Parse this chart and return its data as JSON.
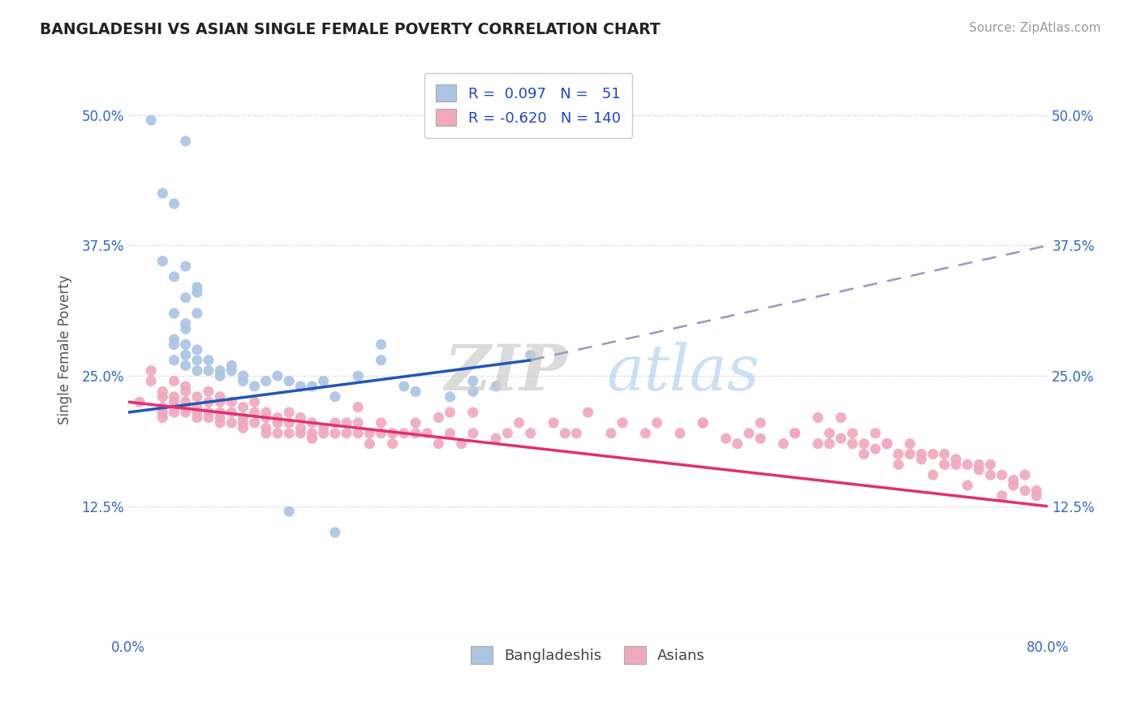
{
  "title": "BANGLADESHI VS ASIAN SINGLE FEMALE POVERTY CORRELATION CHART",
  "source": "Source: ZipAtlas.com",
  "ylabel": "Single Female Poverty",
  "xlim": [
    0.0,
    0.8
  ],
  "ylim": [
    0.0,
    0.55
  ],
  "yticks": [
    0.0,
    0.125,
    0.25,
    0.375,
    0.5
  ],
  "yticklabels": [
    "",
    "12.5%",
    "25.0%",
    "37.5%",
    "50.0%"
  ],
  "xticks": [
    0.0,
    0.2,
    0.4,
    0.6,
    0.8
  ],
  "xticklabels": [
    "0.0%",
    "",
    "",
    "",
    "80.0%"
  ],
  "bg_color": "#ffffff",
  "grid_color": "#c8c8c8",
  "bangladeshi_color": "#aac4e2",
  "asian_color": "#f0a8bc",
  "bangladeshi_line_color": "#2255bb",
  "asian_line_color": "#e03070",
  "dashed_line_color": "#9999bb",
  "R_bangladeshi": 0.097,
  "N_bangladeshi": 51,
  "R_asian": -0.62,
  "N_asian": 140,
  "bangladeshi_line_x0": 0.0,
  "bangladeshi_line_y0": 0.215,
  "bangladeshi_line_x1": 0.35,
  "bangladeshi_line_y1": 0.265,
  "bangladeshi_line_x2": 0.8,
  "bangladeshi_line_y2": 0.375,
  "asian_line_x0": 0.0,
  "asian_line_y0": 0.225,
  "asian_line_x1": 0.8,
  "asian_line_y1": 0.125,
  "bangladeshi_x": [
    0.02,
    0.05,
    0.03,
    0.04,
    0.03,
    0.05,
    0.04,
    0.06,
    0.05,
    0.06,
    0.04,
    0.05,
    0.06,
    0.05,
    0.04,
    0.05,
    0.04,
    0.06,
    0.05,
    0.04,
    0.06,
    0.05,
    0.06,
    0.07,
    0.07,
    0.08,
    0.08,
    0.09,
    0.09,
    0.1,
    0.1,
    0.11,
    0.12,
    0.13,
    0.14,
    0.15,
    0.16,
    0.17,
    0.18,
    0.2,
    0.22,
    0.22,
    0.24,
    0.25,
    0.28,
    0.3,
    0.3,
    0.32,
    0.35,
    0.14,
    0.18
  ],
  "bangladeshi_y": [
    0.495,
    0.475,
    0.425,
    0.415,
    0.36,
    0.355,
    0.345,
    0.335,
    0.325,
    0.33,
    0.31,
    0.3,
    0.31,
    0.295,
    0.285,
    0.28,
    0.28,
    0.275,
    0.27,
    0.265,
    0.265,
    0.26,
    0.255,
    0.265,
    0.255,
    0.25,
    0.255,
    0.255,
    0.26,
    0.25,
    0.245,
    0.24,
    0.245,
    0.25,
    0.245,
    0.24,
    0.24,
    0.245,
    0.23,
    0.25,
    0.265,
    0.28,
    0.24,
    0.235,
    0.23,
    0.235,
    0.245,
    0.24,
    0.27,
    0.12,
    0.1
  ],
  "asian_x": [
    0.01,
    0.02,
    0.02,
    0.03,
    0.03,
    0.03,
    0.03,
    0.03,
    0.04,
    0.04,
    0.04,
    0.04,
    0.04,
    0.05,
    0.05,
    0.05,
    0.05,
    0.05,
    0.06,
    0.06,
    0.06,
    0.06,
    0.07,
    0.07,
    0.07,
    0.07,
    0.08,
    0.08,
    0.08,
    0.08,
    0.08,
    0.09,
    0.09,
    0.09,
    0.1,
    0.1,
    0.1,
    0.1,
    0.11,
    0.11,
    0.11,
    0.12,
    0.12,
    0.12,
    0.12,
    0.13,
    0.13,
    0.13,
    0.14,
    0.14,
    0.14,
    0.15,
    0.15,
    0.15,
    0.16,
    0.16,
    0.16,
    0.17,
    0.17,
    0.18,
    0.18,
    0.19,
    0.19,
    0.2,
    0.2,
    0.2,
    0.21,
    0.21,
    0.22,
    0.22,
    0.23,
    0.23,
    0.24,
    0.25,
    0.25,
    0.26,
    0.27,
    0.27,
    0.28,
    0.28,
    0.29,
    0.3,
    0.3,
    0.32,
    0.33,
    0.34,
    0.35,
    0.37,
    0.38,
    0.39,
    0.4,
    0.42,
    0.43,
    0.45,
    0.46,
    0.48,
    0.5,
    0.52,
    0.54,
    0.55,
    0.57,
    0.58,
    0.6,
    0.61,
    0.62,
    0.63,
    0.64,
    0.65,
    0.66,
    0.67,
    0.68,
    0.69,
    0.7,
    0.71,
    0.72,
    0.73,
    0.74,
    0.75,
    0.76,
    0.77,
    0.78,
    0.79,
    0.6,
    0.63,
    0.66,
    0.69,
    0.72,
    0.75,
    0.78,
    0.55,
    0.58,
    0.61,
    0.64,
    0.67,
    0.7,
    0.73,
    0.76,
    0.62,
    0.65,
    0.68,
    0.71,
    0.74,
    0.77,
    0.79,
    0.5,
    0.53
  ],
  "asian_y": [
    0.225,
    0.245,
    0.255,
    0.235,
    0.22,
    0.215,
    0.21,
    0.23,
    0.245,
    0.23,
    0.22,
    0.225,
    0.215,
    0.24,
    0.235,
    0.225,
    0.22,
    0.215,
    0.23,
    0.22,
    0.215,
    0.21,
    0.235,
    0.225,
    0.215,
    0.21,
    0.23,
    0.225,
    0.215,
    0.21,
    0.205,
    0.225,
    0.215,
    0.205,
    0.22,
    0.21,
    0.205,
    0.2,
    0.225,
    0.215,
    0.205,
    0.215,
    0.21,
    0.2,
    0.195,
    0.21,
    0.205,
    0.195,
    0.215,
    0.205,
    0.195,
    0.21,
    0.2,
    0.195,
    0.205,
    0.195,
    0.19,
    0.2,
    0.195,
    0.205,
    0.195,
    0.205,
    0.195,
    0.205,
    0.195,
    0.22,
    0.195,
    0.185,
    0.205,
    0.195,
    0.195,
    0.185,
    0.195,
    0.205,
    0.195,
    0.195,
    0.185,
    0.21,
    0.195,
    0.215,
    0.185,
    0.195,
    0.215,
    0.19,
    0.195,
    0.205,
    0.195,
    0.205,
    0.195,
    0.195,
    0.215,
    0.195,
    0.205,
    0.195,
    0.205,
    0.195,
    0.205,
    0.19,
    0.195,
    0.19,
    0.185,
    0.195,
    0.185,
    0.195,
    0.19,
    0.185,
    0.185,
    0.18,
    0.185,
    0.175,
    0.175,
    0.17,
    0.175,
    0.165,
    0.17,
    0.165,
    0.16,
    0.165,
    0.155,
    0.15,
    0.155,
    0.14,
    0.21,
    0.195,
    0.185,
    0.175,
    0.165,
    0.155,
    0.14,
    0.205,
    0.195,
    0.185,
    0.175,
    0.165,
    0.155,
    0.145,
    0.135,
    0.21,
    0.195,
    0.185,
    0.175,
    0.165,
    0.145,
    0.135,
    0.205,
    0.185
  ]
}
